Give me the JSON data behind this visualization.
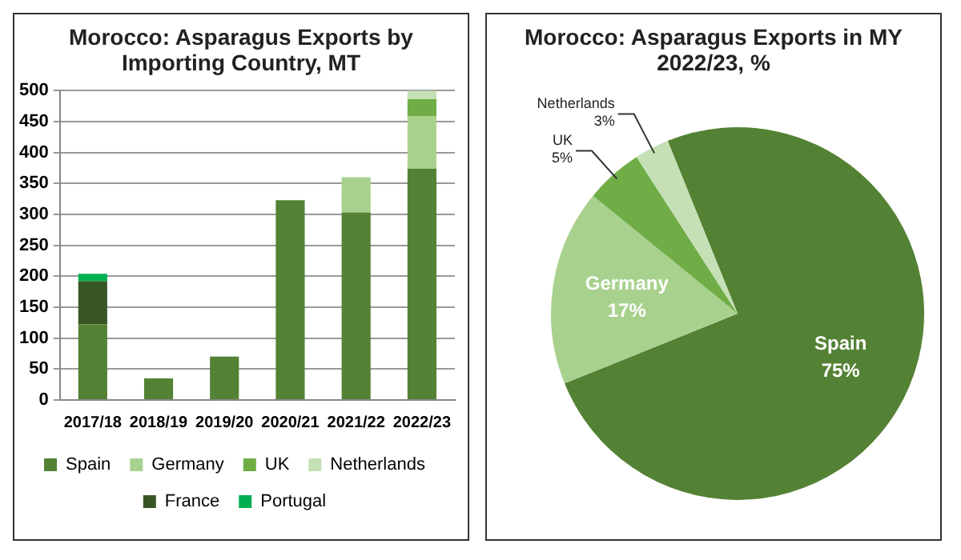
{
  "chart_data": [
    {
      "type": "bar",
      "title": "Morocco: Asparagus Exports by Importing Country, MT",
      "categories": [
        "2017/18",
        "2018/19",
        "2019/20",
        "2020/21",
        "2021/22",
        "2022/23"
      ],
      "stacked": true,
      "series": [
        {
          "name": "Spain",
          "color": "#548235",
          "values": [
            122,
            35,
            70,
            323,
            303,
            374
          ]
        },
        {
          "name": "Germany",
          "color": "#a9d18e",
          "values": [
            null,
            null,
            null,
            null,
            57,
            85
          ]
        },
        {
          "name": "UK",
          "color": "#70ad47",
          "values": [
            null,
            null,
            null,
            null,
            null,
            27
          ]
        },
        {
          "name": "Netherlands",
          "color": "#c5e0b4",
          "values": [
            null,
            null,
            null,
            null,
            null,
            14
          ]
        },
        {
          "name": "France",
          "color": "#375623",
          "values": [
            70,
            null,
            null,
            null,
            null,
            null
          ]
        },
        {
          "name": "Portugal",
          "color": "#00b050",
          "values": [
            12,
            null,
            null,
            null,
            null,
            null
          ]
        }
      ],
      "ylim": [
        0,
        500
      ],
      "yticks": [
        0,
        50,
        100,
        150,
        200,
        250,
        300,
        350,
        400,
        450,
        500
      ],
      "grid": "y",
      "legend": "bottom"
    },
    {
      "type": "pie",
      "title": "Morocco: Asparagus Exports in MY 2022/23, %",
      "categories": [
        "Spain",
        "Germany",
        "UK",
        "Netherlands"
      ],
      "values": [
        75,
        17,
        5,
        3
      ],
      "colors": [
        "#548235",
        "#a9d18e",
        "#70ad47",
        "#c5e0b4"
      ],
      "value_labels": [
        "75%",
        "17%",
        "5%",
        "3%"
      ],
      "legend": false
    }
  ]
}
